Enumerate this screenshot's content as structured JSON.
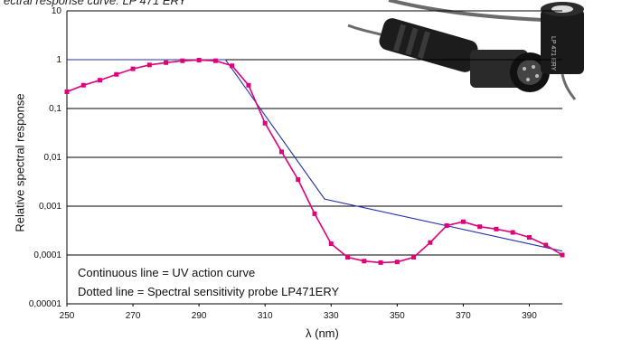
{
  "chart_data": {
    "type": "line",
    "title": "ectral response curve: LP 471 ERY",
    "xlabel": "λ (nm)",
    "ylabel": "Relative spectral response",
    "x_ticks": [
      "250",
      "270",
      "290",
      "310",
      "330",
      "350",
      "370",
      "390"
    ],
    "y_ticks": [
      "10",
      "1",
      "0,1",
      "0,01",
      "0,001",
      "0,0001",
      "0,00001"
    ],
    "xlim": [
      250,
      400
    ],
    "ylim": [
      1e-05,
      10
    ],
    "y_scale": "log",
    "grid": "horizontal",
    "legend": [
      "Continuous line = UV action curve",
      "Dotted line = Spectral sensitivity probe LP471ERY"
    ],
    "series": [
      {
        "name": "UV action curve",
        "color": "#2233aa",
        "style": "solid",
        "x": [
          250,
          298,
          328,
          400
        ],
        "y": [
          1.0,
          1.0,
          0.0014,
          0.00012
        ]
      },
      {
        "name": "Spectral sensitivity probe LP471ERY",
        "color": "#e0007a",
        "style": "dotted",
        "x": [
          250,
          255,
          260,
          265,
          270,
          275,
          280,
          285,
          290,
          295,
          300,
          305,
          310,
          315,
          320,
          325,
          330,
          335,
          340,
          345,
          350,
          355,
          360,
          365,
          370,
          375,
          380,
          385,
          390,
          395,
          400
        ],
        "y": [
          0.22,
          0.3,
          0.38,
          0.5,
          0.65,
          0.78,
          0.87,
          0.95,
          0.98,
          0.95,
          0.75,
          0.3,
          0.05,
          0.013,
          0.0035,
          0.0007,
          0.00017,
          9e-05,
          7.5e-05,
          7e-05,
          7.2e-05,
          9e-05,
          0.00018,
          0.0004,
          0.00048,
          0.00038,
          0.00034,
          0.00029,
          0.00023,
          0.00016,
          0.0001
        ]
      }
    ]
  },
  "photo": {
    "label": "LP 471 ERY"
  }
}
